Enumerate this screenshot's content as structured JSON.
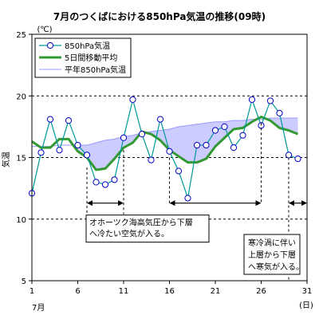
{
  "chart_data": {
    "type": "line",
    "title": "7月のつくばにおける850hPa気温の推移(09時)",
    "ylabel": "気温",
    "yunit": "(℃)",
    "xunit": "(日)",
    "month_label": "7月",
    "ylim": [
      5,
      25
    ],
    "y_ticks": [
      5,
      10,
      15,
      20,
      25
    ],
    "xlim": [
      1,
      31
    ],
    "x_ticks": [
      1,
      6,
      11,
      16,
      21,
      26,
      31
    ],
    "grid": "horizontal dashed at 10, 15, 20",
    "legend_placement": "top-left",
    "series": [
      {
        "name": "850hPa気温",
        "style": "line-marker",
        "color": "#009999",
        "marker_edge": "#0000cc",
        "x": [
          1,
          2,
          3,
          4,
          5,
          6,
          7,
          8,
          9,
          10,
          11,
          12,
          13,
          14,
          15,
          16,
          17,
          18,
          19,
          20,
          21,
          22,
          23,
          24,
          25,
          26,
          27,
          28,
          29,
          30,
          31
        ],
        "values": [
          12.1,
          15.4,
          18.1,
          15.6,
          18.0,
          16.0,
          15.2,
          13.0,
          12.8,
          13.2,
          16.6,
          19.7,
          16.9,
          14.8,
          18.1,
          15.5,
          13.9,
          11.7,
          16.0,
          16.0,
          17.2,
          17.5,
          15.8,
          16.8,
          19.7,
          17.6,
          19.6,
          18.6,
          15.2,
          14.9,
          null
        ]
      },
      {
        "name": "5日間移動平均",
        "style": "thick-line",
        "color": "#339933",
        "x": [
          1,
          2,
          3,
          4,
          5,
          6,
          7,
          8,
          9,
          10,
          11,
          12,
          13,
          14,
          15,
          16,
          17,
          18,
          19,
          20,
          21,
          22,
          23,
          24,
          25,
          26,
          27,
          28,
          29,
          30,
          31
        ],
        "values": [
          16.3,
          15.8,
          15.8,
          16.5,
          16.5,
          15.5,
          15.0,
          14.0,
          14.1,
          14.9,
          15.8,
          16.2,
          17.1,
          16.9,
          16.4,
          15.6,
          15.1,
          14.6,
          14.6,
          14.9,
          15.9,
          16.6,
          17.3,
          17.4,
          17.9,
          18.3,
          18.0,
          17.4,
          17.2,
          16.9,
          null
        ]
      },
      {
        "name": "平年850hPa気温",
        "style": "thin-line",
        "color": "#9999ff",
        "x": [
          1,
          2,
          3,
          4,
          5,
          6,
          7,
          8,
          9,
          10,
          11,
          12,
          13,
          14,
          15,
          16,
          17,
          18,
          19,
          20,
          21,
          22,
          23,
          24,
          25,
          26,
          27,
          28,
          29,
          30,
          31
        ],
        "values": [
          15.9,
          15.9,
          15.9,
          16.0,
          16.0,
          16.0,
          16.0,
          16.2,
          16.4,
          16.5,
          16.7,
          16.8,
          17.0,
          17.1,
          17.2,
          17.3,
          17.5,
          17.6,
          17.7,
          17.8,
          17.9,
          17.9,
          18.0,
          18.0,
          18.1,
          18.1,
          18.2,
          18.2,
          18.2,
          18.2,
          null
        ]
      }
    ],
    "fill_between": "5日間移動平均 below 平年850hPa気温 shaded lavender #ccccff",
    "annotations": [
      {
        "lines": [
          "オホーツク海高気圧から下層",
          "へ冷たい空気が入る。"
        ],
        "arrow_from_day": 7,
        "arrow_to_day": 11
      },
      {
        "lines": [
          "",
          ""
        ],
        "arrow_from_day": 16,
        "arrow_to_day": 26
      },
      {
        "lines": [
          "寒冷渦に伴い",
          "上層から下層",
          "へ寒気が入る。"
        ],
        "arrow_from_day": 29,
        "arrow_to_day": 31
      }
    ]
  }
}
